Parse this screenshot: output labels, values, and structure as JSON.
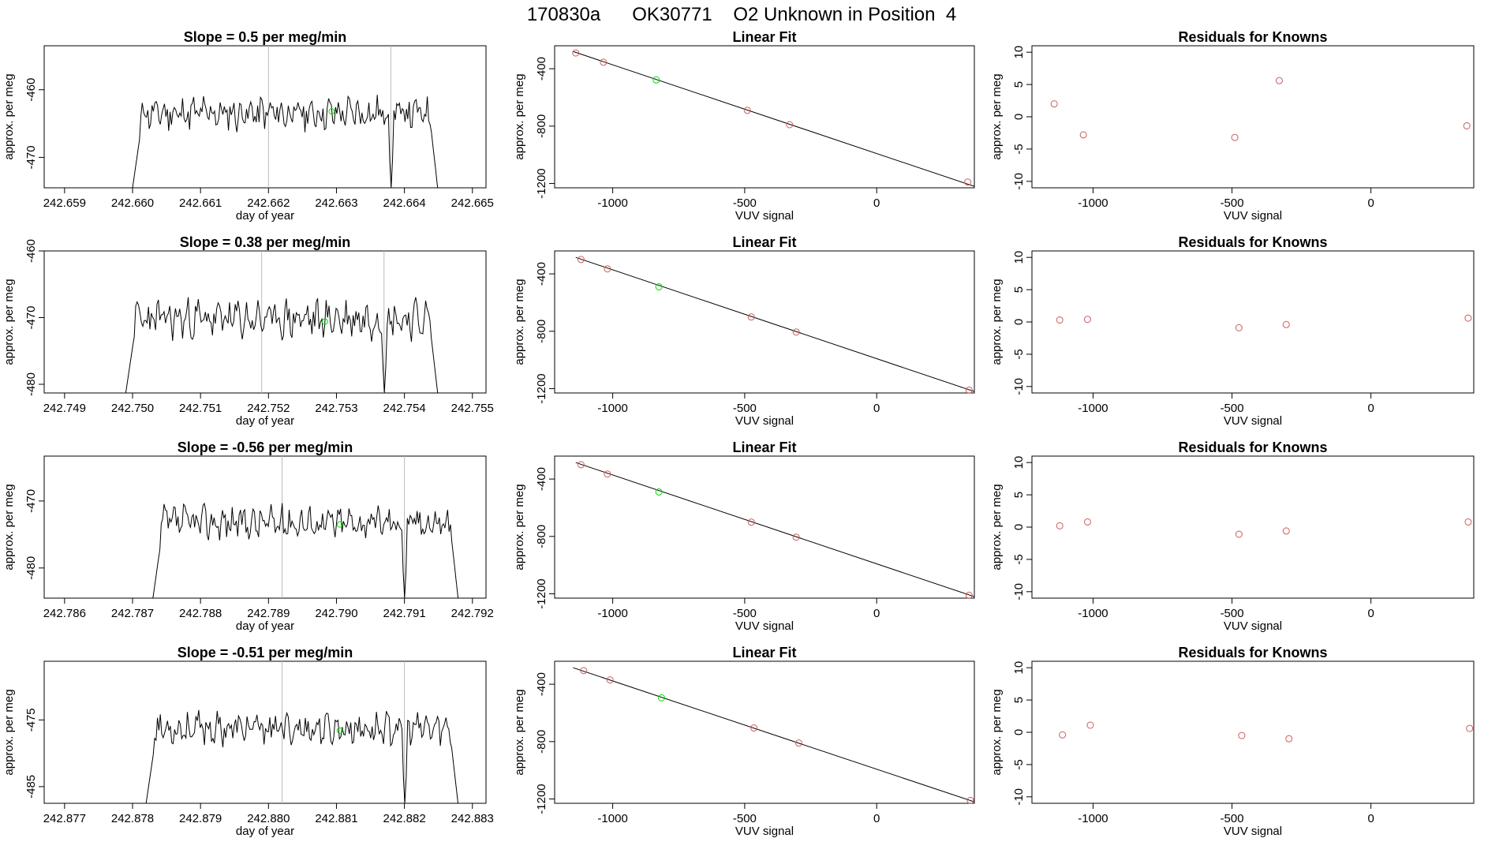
{
  "suptitle": "170830a      OK30771    O2 Unknown in Position  4",
  "colors": {
    "line": "#000000",
    "known": "#cd5c5c",
    "unknown": "#00dd00",
    "marker_line": "#bbbbbb"
  },
  "chart_data": [
    {
      "type": "line",
      "title": "Slope =  0.5  per meg/min",
      "xlabel": "day of year",
      "ylabel": "approx. per meg",
      "xlim": [
        242.6587,
        242.6652
      ],
      "ylim": [
        -474.5,
        -453.5
      ],
      "xticks": [
        "242.659",
        "242.660",
        "242.661",
        "242.662",
        "242.663",
        "242.664",
        "242.665"
      ],
      "yticks": [
        "-460",
        "-470"
      ],
      "ytick_values": [
        -460,
        -470
      ],
      "vlines": [
        242.662,
        242.6638
      ],
      "unknown_point": {
        "x": 242.66293,
        "y": -463.2
      },
      "trace": {
        "start": 242.66,
        "end": 242.6645,
        "base": -463.5,
        "amp": 1.9,
        "floor": -474.5,
        "dip": 242.6638,
        "seed": 11
      }
    },
    {
      "type": "scatter",
      "title": "Linear Fit",
      "xlabel": "VUV signal",
      "ylabel": "approx. per meg",
      "xlim": [
        -1220,
        370
      ],
      "ylim": [
        -1230,
        -240
      ],
      "xticks": [
        "-1000",
        "-500",
        "0"
      ],
      "xtick_values": [
        -1000,
        -500,
        0
      ],
      "yticks": [
        "-400",
        "-800",
        "-1200"
      ],
      "ytick_values": [
        -400,
        -800,
        -1200
      ],
      "fit": {
        "x1": -1150,
        "y1": -280,
        "x2": 370,
        "y2": -1220
      },
      "knowns": [
        {
          "x": -1140,
          "y": -290
        },
        {
          "x": -1035,
          "y": -355
        },
        {
          "x": -490,
          "y": -690
        },
        {
          "x": -330,
          "y": -790
        },
        {
          "x": 345,
          "y": -1190
        }
      ],
      "unknowns": [
        {
          "x": -835,
          "y": -478
        }
      ]
    },
    {
      "type": "scatter",
      "title": "Residuals for Knowns",
      "xlabel": "VUV signal",
      "ylabel": "approx. per meg",
      "xlim": [
        -1220,
        370
      ],
      "ylim": [
        -11,
        11
      ],
      "xticks": [
        "-1000",
        "-500",
        "0"
      ],
      "xtick_values": [
        -1000,
        -500,
        0
      ],
      "yticks": [
        "10",
        "5",
        "0",
        "-5",
        "-10"
      ],
      "ytick_values": [
        10,
        5,
        0,
        -5,
        -10
      ],
      "knowns": [
        {
          "x": -1140,
          "y": 2.0
        },
        {
          "x": -1035,
          "y": -2.8
        },
        {
          "x": -490,
          "y": -3.2
        },
        {
          "x": -330,
          "y": 5.6
        },
        {
          "x": 345,
          "y": -1.4
        }
      ]
    },
    {
      "type": "line",
      "title": "Slope =  0.38  per meg/min",
      "xlabel": "day of year",
      "ylabel": "approx. per meg",
      "xlim": [
        242.7487,
        242.7552
      ],
      "ylim": [
        -481.3,
        -460
      ],
      "xticks": [
        "242.749",
        "242.750",
        "242.751",
        "242.752",
        "242.753",
        "242.754",
        "242.755"
      ],
      "yticks": [
        "-460",
        "-470",
        "-480"
      ],
      "ytick_values": [
        -460,
        -470,
        -480
      ],
      "vlines": [
        242.7519,
        242.7537
      ],
      "unknown_point": {
        "x": 242.75283,
        "y": -470.6
      },
      "trace": {
        "start": 242.7499,
        "end": 242.7545,
        "base": -470.2,
        "amp": 2.2,
        "floor": -481.3,
        "dip": 242.7537,
        "seed": 23
      }
    },
    {
      "type": "scatter",
      "title": "Linear Fit",
      "xlabel": "VUV signal",
      "ylabel": "approx. per meg",
      "xlim": [
        -1220,
        370
      ],
      "ylim": [
        -1230,
        -240
      ],
      "xticks": [
        "-1000",
        "-500",
        "0"
      ],
      "xtick_values": [
        -1000,
        -500,
        0
      ],
      "yticks": [
        "-400",
        "-800",
        "-1200"
      ],
      "ytick_values": [
        -400,
        -800,
        -1200
      ],
      "fit": {
        "x1": -1140,
        "y1": -285,
        "x2": 370,
        "y2": -1220
      },
      "knowns": [
        {
          "x": -1120,
          "y": -300
        },
        {
          "x": -1020,
          "y": -365
        },
        {
          "x": -475,
          "y": -700
        },
        {
          "x": -305,
          "y": -805
        },
        {
          "x": 350,
          "y": -1210
        }
      ],
      "unknowns": [
        {
          "x": -825,
          "y": -490
        }
      ]
    },
    {
      "type": "scatter",
      "title": "Residuals for Knowns",
      "xlabel": "VUV signal",
      "ylabel": "approx. per meg",
      "xlim": [
        -1220,
        370
      ],
      "ylim": [
        -11,
        11
      ],
      "xticks": [
        "-1000",
        "-500",
        "0"
      ],
      "xtick_values": [
        -1000,
        -500,
        0
      ],
      "yticks": [
        "10",
        "5",
        "0",
        "-5",
        "-10"
      ],
      "ytick_values": [
        10,
        5,
        0,
        -5,
        -10
      ],
      "knowns": [
        {
          "x": -1120,
          "y": 0.3
        },
        {
          "x": -1020,
          "y": 0.4
        },
        {
          "x": -475,
          "y": -0.9
        },
        {
          "x": -305,
          "y": -0.4
        },
        {
          "x": 350,
          "y": 0.6
        }
      ]
    },
    {
      "type": "line",
      "title": "Slope =  -0.56  per meg/min",
      "xlabel": "day of year",
      "ylabel": "approx. per meg",
      "xlim": [
        242.7857,
        242.7922
      ],
      "ylim": [
        -484.5,
        -463.3
      ],
      "xticks": [
        "242.786",
        "242.787",
        "242.788",
        "242.789",
        "242.790",
        "242.791",
        "242.792"
      ],
      "yticks": [
        "-470",
        "-480"
      ],
      "ytick_values": [
        -470,
        -480
      ],
      "vlines": [
        242.7892,
        242.791
      ],
      "unknown_point": {
        "x": 242.79005,
        "y": -473.5
      },
      "trace": {
        "start": 242.7873,
        "end": 242.7918,
        "base": -473.2,
        "amp": 1.9,
        "floor": -484.5,
        "dip": 242.791,
        "seed": 37
      }
    },
    {
      "type": "scatter",
      "title": "Linear Fit",
      "xlabel": "VUV signal",
      "ylabel": "approx. per meg",
      "xlim": [
        -1220,
        370
      ],
      "ylim": [
        -1230,
        -240
      ],
      "xticks": [
        "-1000",
        "-500",
        "0"
      ],
      "xtick_values": [
        -1000,
        -500,
        0
      ],
      "yticks": [
        "-400",
        "-800",
        "-1200"
      ],
      "ytick_values": [
        -400,
        -800,
        -1200
      ],
      "fit": {
        "x1": -1140,
        "y1": -285,
        "x2": 370,
        "y2": -1220
      },
      "knowns": [
        {
          "x": -1120,
          "y": -300
        },
        {
          "x": -1020,
          "y": -365
        },
        {
          "x": -475,
          "y": -700
        },
        {
          "x": -305,
          "y": -805
        },
        {
          "x": 350,
          "y": -1210
        }
      ],
      "unknowns": [
        {
          "x": -825,
          "y": -490
        }
      ]
    },
    {
      "type": "scatter",
      "title": "Residuals for Knowns",
      "xlabel": "VUV signal",
      "ylabel": "approx. per meg",
      "xlim": [
        -1220,
        370
      ],
      "ylim": [
        -11,
        11
      ],
      "xticks": [
        "-1000",
        "-500",
        "0"
      ],
      "xtick_values": [
        -1000,
        -500,
        0
      ],
      "yticks": [
        "10",
        "5",
        "0",
        "-5",
        "-10"
      ],
      "ytick_values": [
        10,
        5,
        0,
        -5,
        -10
      ],
      "knowns": [
        {
          "x": -1120,
          "y": 0.2
        },
        {
          "x": -1020,
          "y": 0.8
        },
        {
          "x": -475,
          "y": -1.1
        },
        {
          "x": -305,
          "y": -0.6
        },
        {
          "x": 350,
          "y": 0.8
        }
      ]
    },
    {
      "type": "line",
      "title": "Slope =  -0.51  per meg/min",
      "xlabel": "day of year",
      "ylabel": "approx. per meg",
      "xlim": [
        242.8767,
        242.8832
      ],
      "ylim": [
        -487.5,
        -466.2
      ],
      "xticks": [
        "242.877",
        "242.878",
        "242.879",
        "242.880",
        "242.881",
        "242.882",
        "242.883"
      ],
      "yticks": [
        "-475",
        "-485"
      ],
      "ytick_values": [
        -475,
        -485
      ],
      "vlines": [
        242.8802,
        242.882
      ],
      "unknown_point": {
        "x": 242.88105,
        "y": -476.6
      },
      "trace": {
        "start": 242.8782,
        "end": 242.8828,
        "base": -476.3,
        "amp": 1.8,
        "floor": -487.5,
        "dip": 242.882,
        "seed": 53
      }
    },
    {
      "type": "scatter",
      "title": "Linear Fit",
      "xlabel": "VUV signal",
      "ylabel": "approx. per meg",
      "xlim": [
        -1220,
        370
      ],
      "ylim": [
        -1230,
        -240
      ],
      "xticks": [
        "-1000",
        "-500",
        "0"
      ],
      "xtick_values": [
        -1000,
        -500,
        0
      ],
      "yticks": [
        "-400",
        "-800",
        "-1200"
      ],
      "ytick_values": [
        -400,
        -800,
        -1200
      ],
      "fit": {
        "x1": -1150,
        "y1": -285,
        "x2": 370,
        "y2": -1220
      },
      "knowns": [
        {
          "x": -1110,
          "y": -305
        },
        {
          "x": -1010,
          "y": -370
        },
        {
          "x": -465,
          "y": -705
        },
        {
          "x": -295,
          "y": -810
        },
        {
          "x": 355,
          "y": -1210
        }
      ],
      "unknowns": [
        {
          "x": -815,
          "y": -495
        }
      ]
    },
    {
      "type": "scatter",
      "title": "Residuals for Knowns",
      "xlabel": "VUV signal",
      "ylabel": "approx. per meg",
      "xlim": [
        -1220,
        370
      ],
      "ylim": [
        -11,
        11
      ],
      "xticks": [
        "-1000",
        "-500",
        "0"
      ],
      "xtick_values": [
        -1000,
        -500,
        0
      ],
      "yticks": [
        "10",
        "5",
        "0",
        "-5",
        "-10"
      ],
      "ytick_values": [
        10,
        5,
        0,
        -5,
        -10
      ],
      "knowns": [
        {
          "x": -1110,
          "y": -0.4
        },
        {
          "x": -1010,
          "y": 1.1
        },
        {
          "x": -465,
          "y": -0.5
        },
        {
          "x": -295,
          "y": -1.0
        },
        {
          "x": 355,
          "y": 0.6
        }
      ]
    }
  ]
}
